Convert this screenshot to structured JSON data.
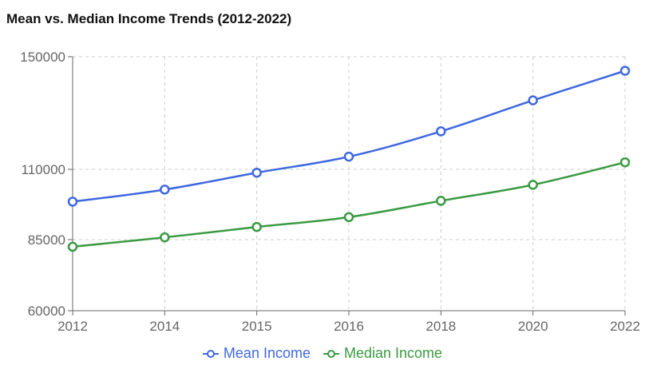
{
  "chart_data": {
    "type": "line",
    "title": "Mean vs. Median Income Trends (2012-2022)",
    "xlabel": "",
    "ylabel": "",
    "categories": [
      "2012",
      "2014",
      "2015",
      "2016",
      "2018",
      "2020",
      "2022"
    ],
    "y_ticks": [
      60000,
      85000,
      110000,
      150000
    ],
    "ylim": [
      60000,
      150000
    ],
    "grid": true,
    "legend_position": "bottom",
    "series": [
      {
        "name": "Mean Income",
        "color": "#3f68e0",
        "values": [
          98500,
          102800,
          108800,
          114500,
          123500,
          134500,
          145000
        ]
      },
      {
        "name": "Median Income",
        "color": "#3a9a42",
        "values": [
          82500,
          85800,
          89500,
          93000,
          98800,
          104500,
          112500
        ]
      }
    ]
  }
}
